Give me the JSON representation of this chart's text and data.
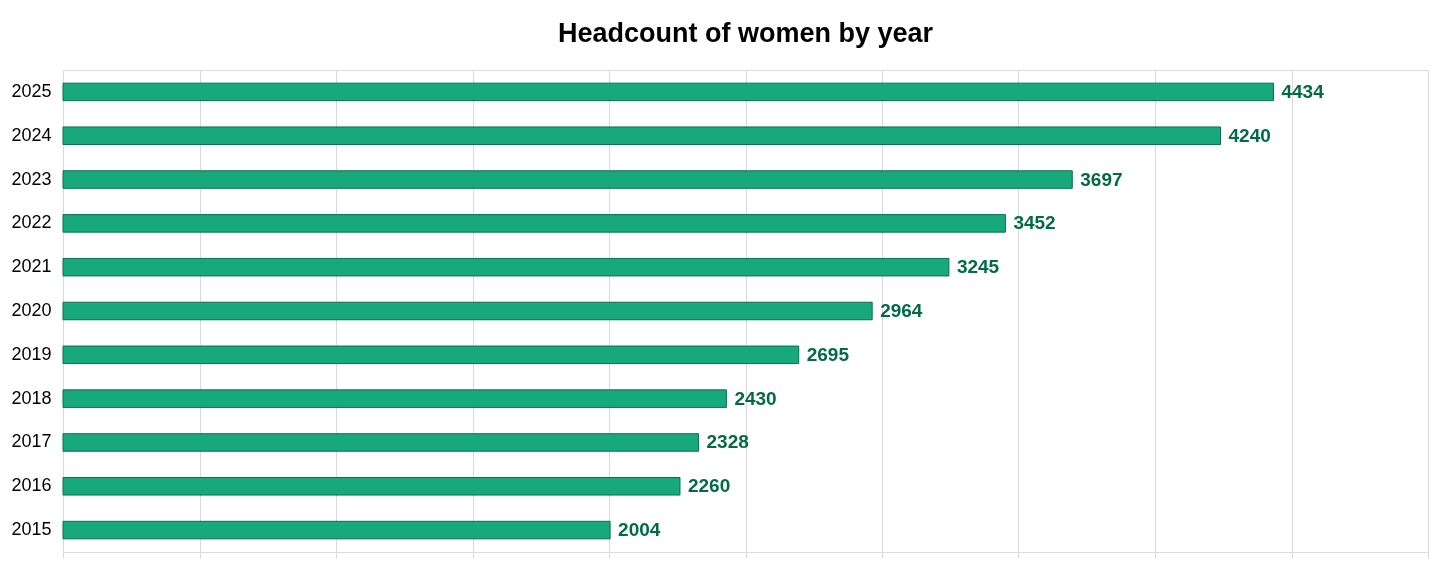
{
  "chart_data": {
    "type": "bar",
    "orientation": "horizontal",
    "title": "Headcount of women by year",
    "categories": [
      "2025",
      "2024",
      "2023",
      "2022",
      "2021",
      "2020",
      "2019",
      "2018",
      "2017",
      "2016",
      "2015"
    ],
    "values": [
      4434,
      4240,
      3697,
      3452,
      3245,
      2964,
      2695,
      2430,
      2328,
      2260,
      2004
    ],
    "color": "#17a97b",
    "xlim": [
      0,
      5000
    ],
    "xticks": [
      {
        "value": 0,
        "label": null
      },
      {
        "value": 500,
        "label": null
      },
      {
        "value": 1000,
        "label": null
      },
      {
        "value": 1500,
        "label": null
      },
      {
        "value": 2000,
        "label": null
      },
      {
        "value": 2500,
        "label": null
      },
      {
        "value": 3000,
        "label": null
      },
      {
        "value": 3500,
        "label": null
      },
      {
        "value": 4000,
        "label": null
      },
      {
        "value": 4500,
        "label": null
      },
      {
        "value": 5000,
        "label": null
      }
    ],
    "tick_labels": "y",
    "grid": "x",
    "data_labels": true,
    "legend": false
  }
}
